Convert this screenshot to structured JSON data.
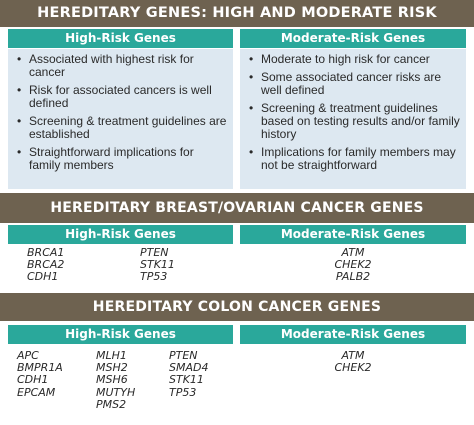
{
  "section1": {
    "title": "HEREDITARY GENES: HIGH AND MODERATE RISK",
    "high_header": "High-Risk Genes",
    "moderate_header": "Moderate-Risk Genes",
    "high_items": [
      "Associated with highest risk for cancer",
      "Risk for associated cancers is well defined",
      "Screening & treatment guidelines are established",
      "Straightforward implications for family members"
    ],
    "moderate_items": [
      "Moderate to high risk for cancer",
      "Some associated cancer risks are well defined",
      "Screening & treatment guidelines based on testing results and/or family history",
      "Implications for family members may not be straightforward"
    ]
  },
  "section2": {
    "title": "HEREDITARY BREAST/OVARIAN CANCER GENES",
    "high_header": "High-Risk Genes",
    "moderate_header": "Moderate-Risk Genes",
    "high_col1": [
      "BRCA1",
      "BRCA2",
      "CDH1"
    ],
    "high_col2": [
      "PTEN",
      "STK11",
      "TP53"
    ],
    "moderate_genes": [
      "ATM",
      "CHEK2",
      "PALB2"
    ]
  },
  "section3": {
    "title": "HEREDITARY COLON CANCER GENES",
    "high_header": "High-Risk Genes",
    "moderate_header": "Moderate-Risk Genes",
    "high_col1": [
      "APC",
      "BMPR1A",
      "CDH1",
      "EPCAM"
    ],
    "high_col2": [
      "MLH1",
      "MSH2",
      "MSH6",
      "MUTYH",
      "PMS2"
    ],
    "high_col3": [
      "PTEN",
      "SMAD4",
      "STK11",
      "TP53"
    ],
    "moderate_genes": [
      "ATM",
      "CHEK2"
    ]
  },
  "colors": {
    "band": "#6e6250",
    "subheader": "#2aa89b",
    "panel": "#dde8f1"
  }
}
